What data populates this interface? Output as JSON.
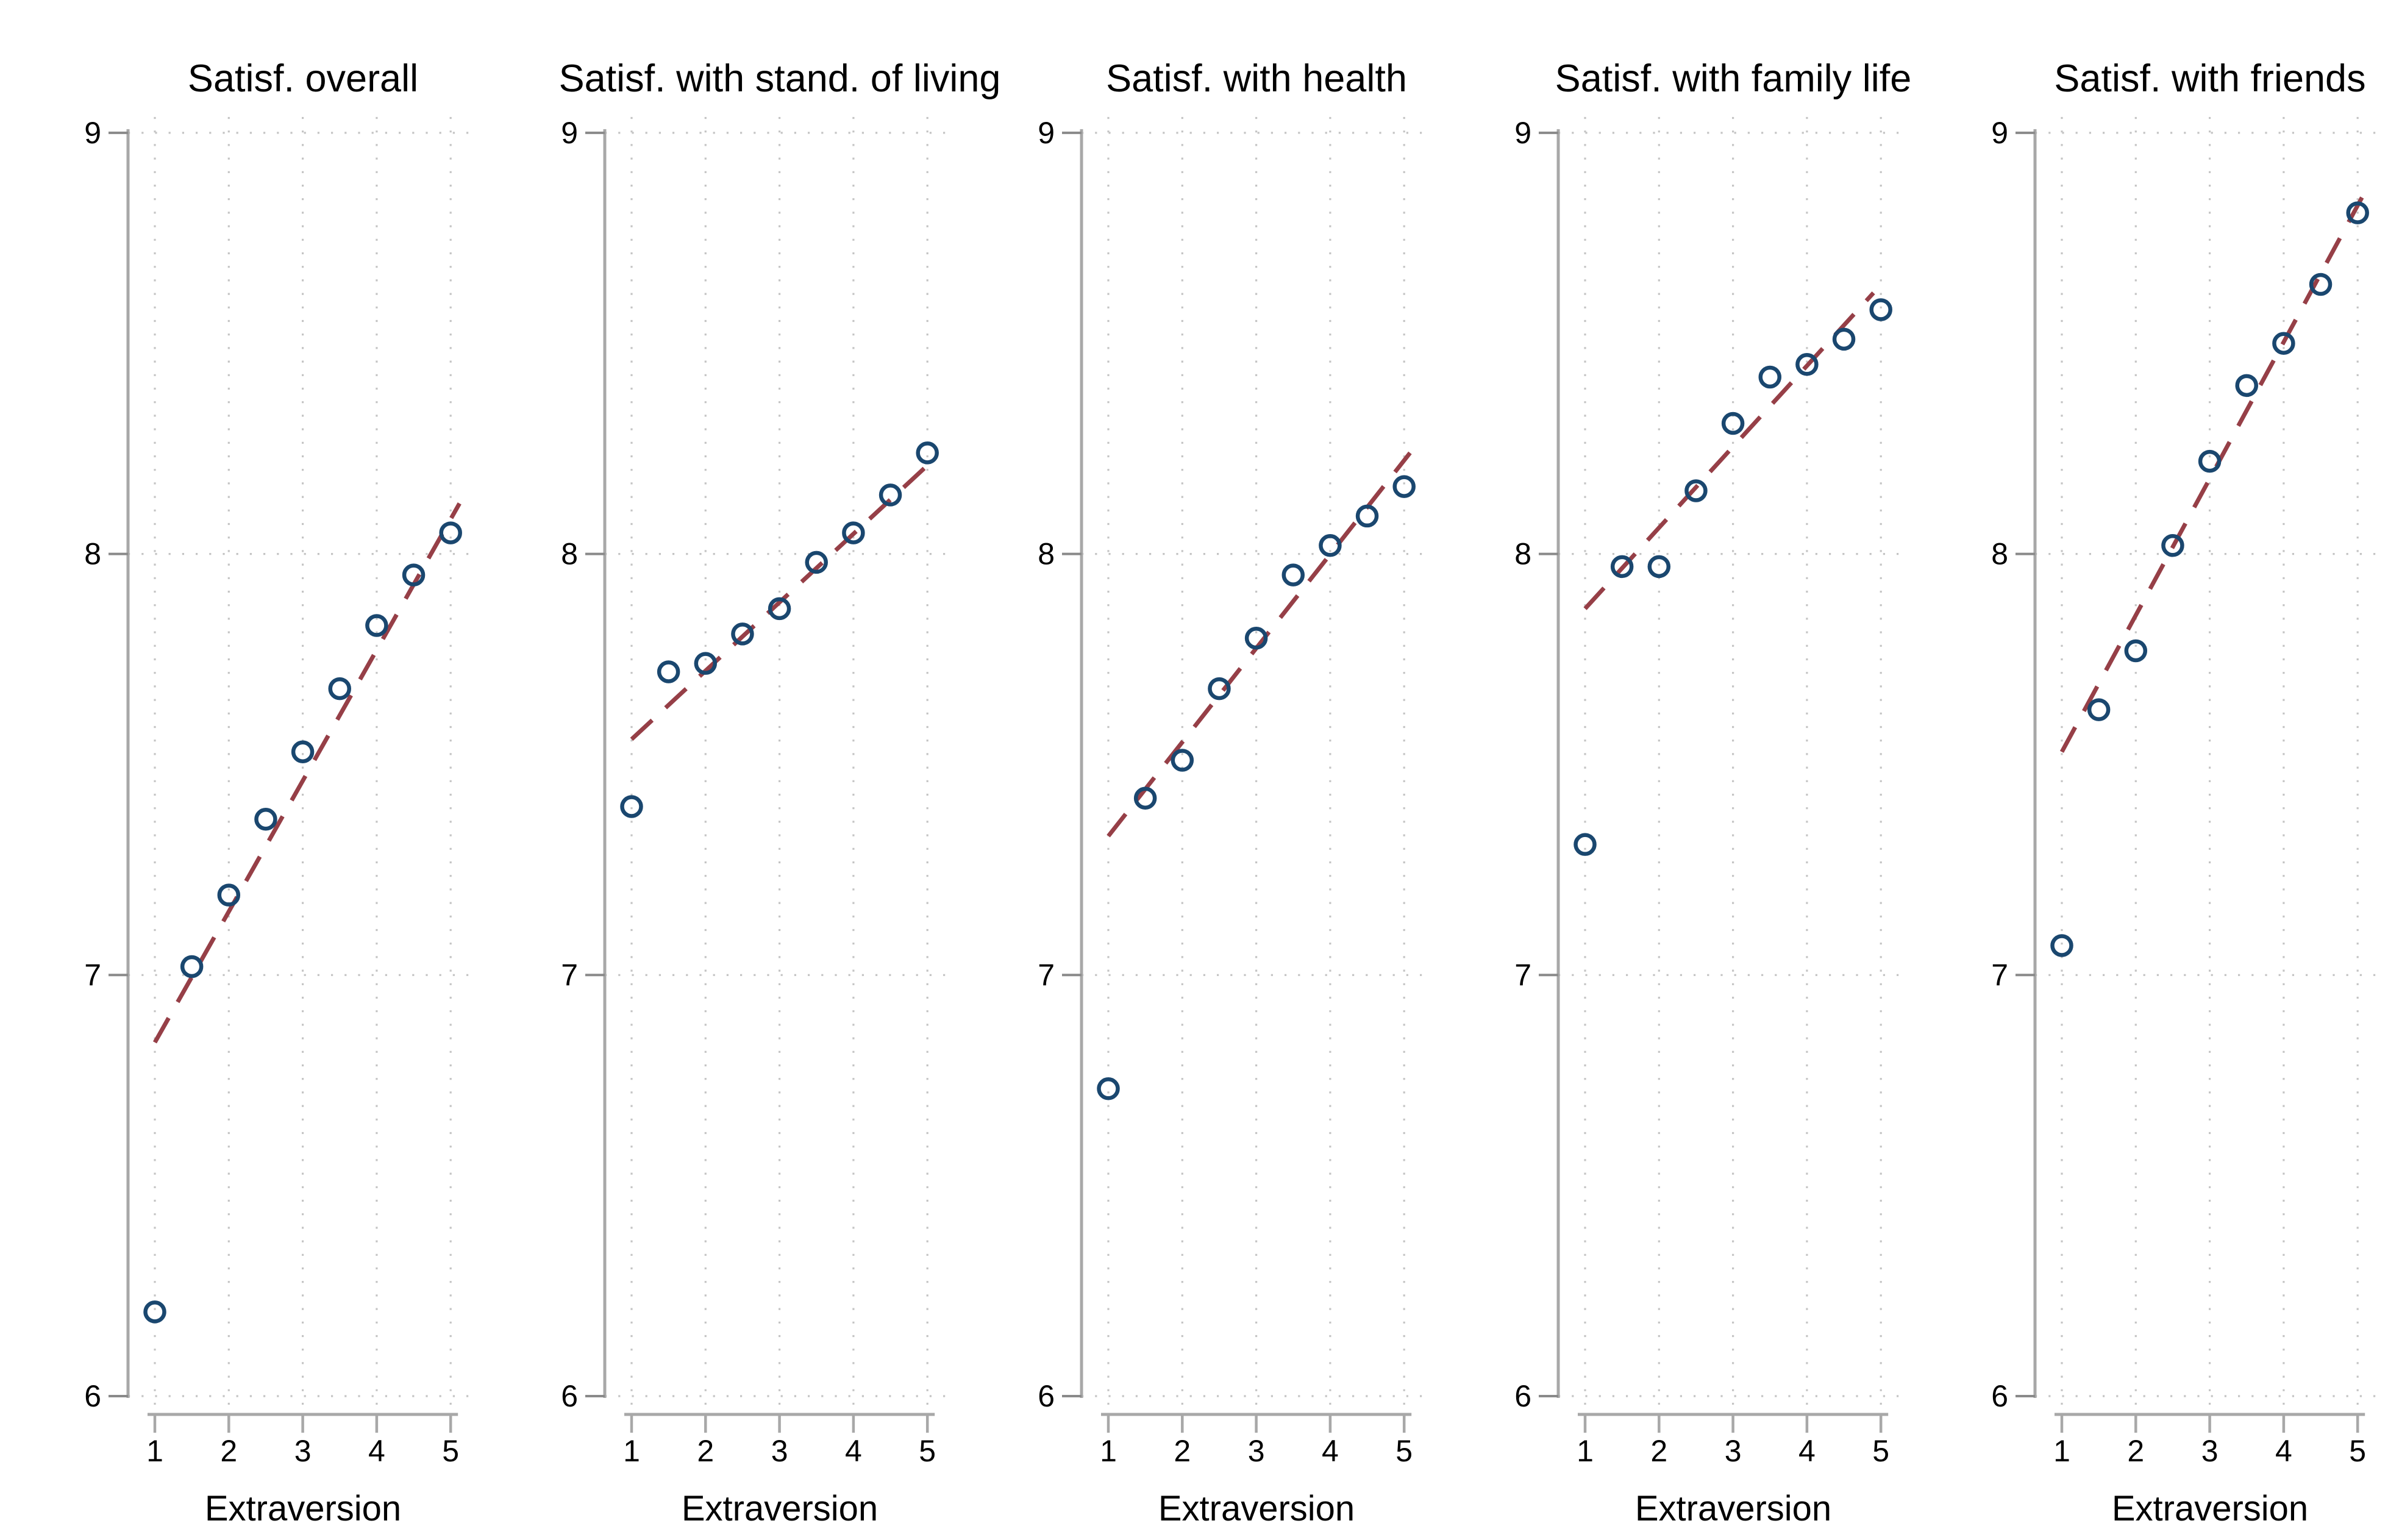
{
  "style": {
    "background": "#ffffff",
    "marker_color": "#1a476f",
    "fit_line_color": "#963f47",
    "grid_color": "#c4c4c4",
    "axis_color": "#a8a8a8",
    "y_tick_color": "#8a8a8a",
    "text_color": "#000000"
  },
  "chart_data": [
    {
      "type": "scatter",
      "title": "Satisf. overall",
      "xlabel": "Extraversion",
      "x_ticks": [
        1,
        2,
        3,
        4,
        5
      ],
      "y_ticks": [
        6,
        7,
        8,
        9
      ],
      "xlim": [
        0.85,
        5.35
      ],
      "ylim": [
        5.95,
        9.05
      ],
      "grid": true,
      "x": [
        1,
        1.5,
        2,
        2.5,
        3,
        3.5,
        4,
        4.5,
        5
      ],
      "y": [
        6.2,
        7.02,
        7.19,
        7.37,
        7.53,
        7.68,
        7.83,
        7.95,
        8.05
      ],
      "fit_line": {
        "x1": 1.0,
        "y1": 6.84,
        "x2": 5.12,
        "y2": 8.12
      }
    },
    {
      "type": "scatter",
      "title": "Satisf. with stand. of living",
      "xlabel": "Extraversion",
      "x_ticks": [
        1,
        2,
        3,
        4,
        5
      ],
      "y_ticks": [
        6,
        7,
        8,
        9
      ],
      "xlim": [
        0.85,
        5.35
      ],
      "ylim": [
        5.95,
        9.05
      ],
      "grid": true,
      "x": [
        1,
        1.5,
        2,
        2.5,
        3,
        3.5,
        4,
        4.5,
        5
      ],
      "y": [
        7.4,
        7.72,
        7.74,
        7.81,
        7.87,
        7.98,
        8.05,
        8.14,
        8.24
      ],
      "fit_line": {
        "x1": 1.0,
        "y1": 7.56,
        "x2": 5.06,
        "y2": 8.22
      }
    },
    {
      "type": "scatter",
      "title": "Satisf. with health",
      "xlabel": "Extraversion",
      "x_ticks": [
        1,
        2,
        3,
        4,
        5
      ],
      "y_ticks": [
        6,
        7,
        8,
        9
      ],
      "xlim": [
        0.85,
        5.35
      ],
      "ylim": [
        5.95,
        9.05
      ],
      "grid": true,
      "x": [
        1,
        1.5,
        2,
        2.5,
        3,
        3.5,
        4,
        4.5,
        5
      ],
      "y": [
        6.73,
        7.42,
        7.51,
        7.68,
        7.8,
        7.95,
        8.02,
        8.09,
        8.16
      ],
      "fit_line": {
        "x1": 1.0,
        "y1": 7.33,
        "x2": 5.08,
        "y2": 8.24
      }
    },
    {
      "type": "scatter",
      "title": "Satisf. with family life",
      "xlabel": "Extraversion",
      "x_ticks": [
        1,
        2,
        3,
        4,
        5
      ],
      "y_ticks": [
        6,
        7,
        8,
        9
      ],
      "xlim": [
        0.85,
        5.35
      ],
      "ylim": [
        5.95,
        9.05
      ],
      "grid": true,
      "x": [
        1,
        1.5,
        2,
        2.5,
        3,
        3.5,
        4,
        4.5,
        5
      ],
      "y": [
        7.31,
        7.97,
        7.97,
        8.15,
        8.31,
        8.42,
        8.45,
        8.51,
        8.58
      ],
      "fit_line": {
        "x1": 1.0,
        "y1": 7.87,
        "x2": 4.9,
        "y2": 8.62
      }
    },
    {
      "type": "scatter",
      "title": "Satisf. with friends",
      "xlabel": "Extraversion",
      "x_ticks": [
        1,
        2,
        3,
        4,
        5
      ],
      "y_ticks": [
        6,
        7,
        8,
        9
      ],
      "xlim": [
        0.85,
        5.35
      ],
      "ylim": [
        5.95,
        9.05
      ],
      "grid": true,
      "x": [
        1,
        1.5,
        2,
        2.5,
        3,
        3.5,
        4,
        4.5,
        5
      ],
      "y": [
        7.07,
        7.63,
        7.77,
        8.02,
        8.22,
        8.4,
        8.5,
        8.64,
        8.81
      ],
      "fit_line": {
        "x1": 1.0,
        "y1": 7.53,
        "x2": 5.1,
        "y2": 8.86
      }
    }
  ]
}
